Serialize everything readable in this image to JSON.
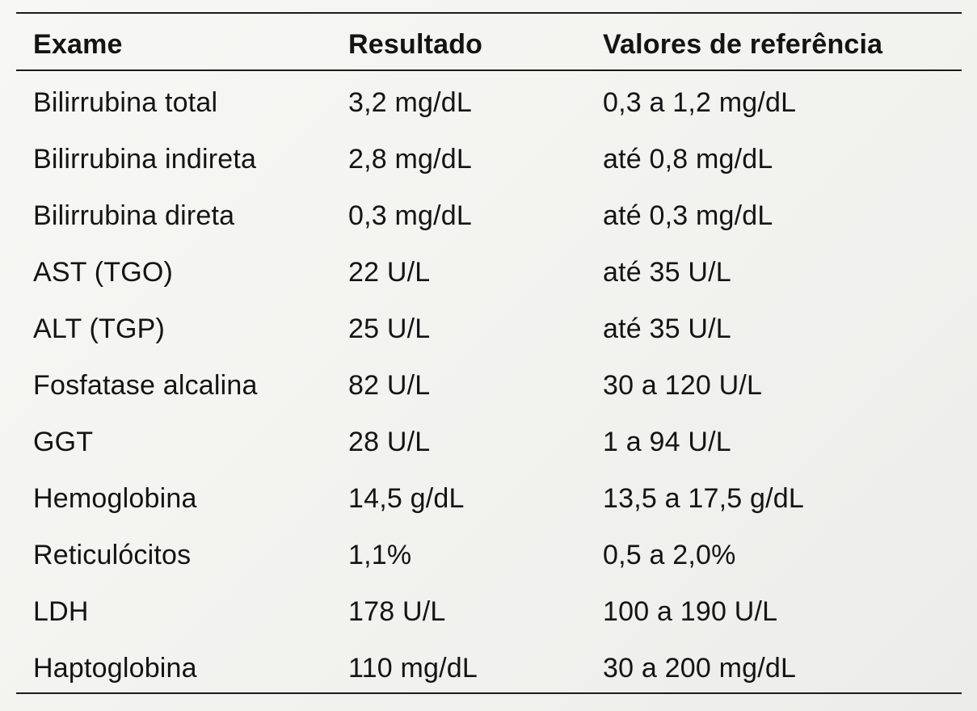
{
  "table": {
    "headers": [
      "Exame",
      "Resultado",
      "Valores de referência"
    ],
    "rows": [
      [
        "Bilirrubina total",
        "3,2 mg/dL",
        "0,3 a 1,2 mg/dL"
      ],
      [
        "Bilirrubina indireta",
        "2,8 mg/dL",
        "até 0,8 mg/dL"
      ],
      [
        "Bilirrubina direta",
        "0,3 mg/dL",
        "até 0,3 mg/dL"
      ],
      [
        "AST (TGO)",
        "22 U/L",
        "até 35 U/L"
      ],
      [
        "ALT (TGP)",
        "25 U/L",
        "até 35 U/L"
      ],
      [
        "Fosfatase alcalina",
        "82 U/L",
        "30 a 120 U/L"
      ],
      [
        "GGT",
        "28 U/L",
        "1 a 94 U/L"
      ],
      [
        "Hemoglobina",
        "14,5 g/dL",
        "13,5 a 17,5 g/dL"
      ],
      [
        "Reticulócitos",
        "1,1%",
        "0,5 a 2,0%"
      ],
      [
        "LDH",
        "178 U/L",
        "100 a 190 U/L"
      ],
      [
        "Haptoglobina",
        "110 mg/dL",
        "30 a 200 mg/dL"
      ]
    ]
  }
}
